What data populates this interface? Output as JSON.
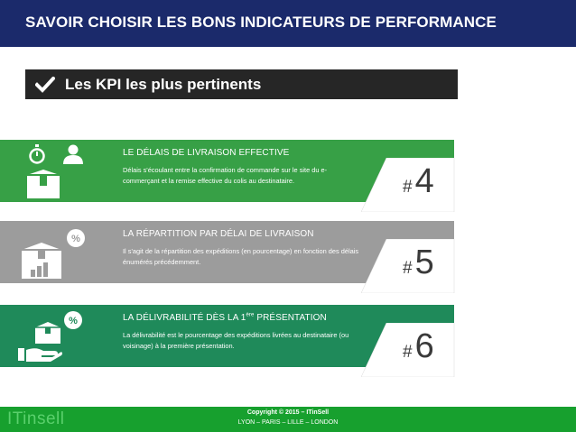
{
  "header": {
    "title": "SAVOIR CHOISIR LES BONS INDICATEURS DE PERFORMANCE"
  },
  "subtitle": {
    "text": "Les KPI les plus pertinents",
    "icon": "check-icon"
  },
  "kpis": [
    {
      "title": "LE DÉLAIS DE LIVRAISON EFFECTIVE",
      "description": "Délais s'écoulant entre la confirmation de commande sur le site du e-commerçant et la remise effective du colis au destinataire.",
      "rank_hash": "#",
      "rank": "4",
      "color": "#37a046",
      "icons": [
        "stopwatch-icon",
        "person-icon",
        "box-icon"
      ]
    },
    {
      "title": "LA RÉPARTITION PAR DÉLAI DE LIVRAISON",
      "description": "Il s'agit de la répartition des expéditions (en pourcentage) en fonction des délais énumérés précédemment.",
      "rank_hash": "#",
      "rank": "5",
      "color": "#9c9c9c",
      "icons": [
        "percent-badge-icon",
        "box-icon",
        "bar-chart-icon"
      ]
    },
    {
      "title_prefix": "LA DÉLIVRABILITÉ DÈS LA 1",
      "title_sup": "ère",
      "title_suffix": " PRÉSENTATION",
      "description": "La délivrabilité est le pourcentage des expéditions livrées au destinataire (ou voisinage) à la première présentation.",
      "rank_hash": "#",
      "rank": "6",
      "color": "#1f8a5a",
      "icons": [
        "percent-badge-icon",
        "box-icon",
        "hand-icon"
      ]
    }
  ],
  "footer": {
    "logo": "ITinsell",
    "copyright": "Copyright © 2015 – ITinSell",
    "cities": "LYON – PARIS – LILLE – LONDON",
    "color": "#17a02e"
  }
}
